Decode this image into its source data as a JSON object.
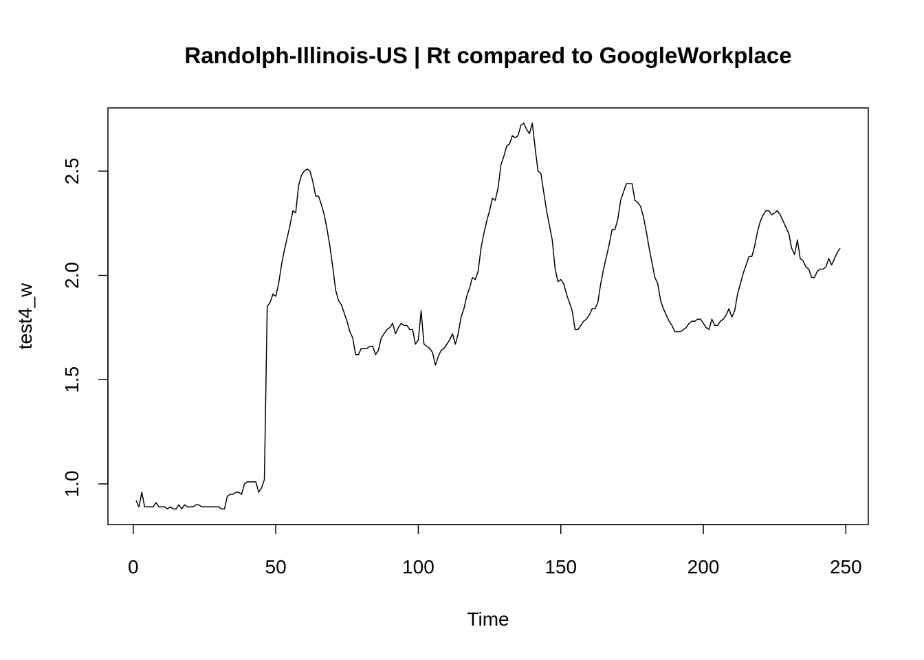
{
  "chart_data": {
    "type": "line",
    "title": "Randolph-Illinois-US | Rt compared to GoogleWorkplace",
    "x_label": "Time",
    "y_label": "test4_w",
    "xlim": [
      -8.88,
      257.88
    ],
    "ylim": [
      0.805,
      2.803
    ],
    "xticks": [
      0,
      50,
      100,
      150,
      200,
      250
    ],
    "yticks": [
      {
        "value": 1,
        "label": "1.0"
      },
      {
        "value": 1.5,
        "label": "1.5"
      },
      {
        "value": 2,
        "label": "2.0"
      },
      {
        "value": 2.5,
        "label": "2.5"
      }
    ],
    "color": "#000000",
    "x": [
      1,
      2,
      3,
      4,
      5,
      6,
      7,
      8,
      9,
      10,
      11,
      12,
      13,
      14,
      15,
      16,
      17,
      18,
      19,
      20,
      21,
      22,
      23,
      24,
      25,
      26,
      27,
      28,
      29,
      30,
      31,
      32,
      33,
      34,
      35,
      36,
      37,
      38,
      39,
      40,
      41,
      42,
      43,
      44,
      45,
      46,
      47,
      48,
      49,
      50,
      51,
      52,
      53,
      54,
      55,
      56,
      57,
      58,
      59,
      60,
      61,
      62,
      63,
      64,
      65,
      66,
      67,
      68,
      69,
      70,
      71,
      72,
      73,
      74,
      75,
      76,
      77,
      78,
      79,
      80,
      81,
      82,
      83,
      84,
      85,
      86,
      87,
      88,
      89,
      90,
      91,
      92,
      93,
      94,
      95,
      96,
      97,
      98,
      99,
      100,
      101,
      102,
      103,
      104,
      105,
      106,
      107,
      108,
      109,
      110,
      111,
      112,
      113,
      114,
      115,
      116,
      117,
      118,
      119,
      120,
      121,
      122,
      123,
      124,
      125,
      126,
      127,
      128,
      129,
      130,
      131,
      132,
      133,
      134,
      135,
      136,
      137,
      138,
      139,
      140,
      141,
      142,
      143,
      144,
      145,
      146,
      147,
      148,
      149,
      150,
      151,
      152,
      153,
      154,
      155,
      156,
      157,
      158,
      159,
      160,
      161,
      162,
      163,
      164,
      165,
      166,
      167,
      168,
      169,
      170,
      171,
      172,
      173,
      174,
      175,
      176,
      177,
      178,
      179,
      180,
      181,
      182,
      183,
      184,
      185,
      186,
      187,
      188,
      189,
      190,
      191,
      192,
      193,
      194,
      195,
      196,
      197,
      198,
      199,
      200,
      201,
      202,
      203,
      204,
      205,
      206,
      207,
      208,
      209,
      210,
      211,
      212,
      213,
      214,
      215,
      216,
      217,
      218,
      219,
      220,
      221,
      222,
      223,
      224,
      225,
      226,
      227,
      228,
      229,
      230,
      231,
      232,
      233,
      234,
      235,
      236,
      237,
      238,
      239,
      240,
      241,
      242,
      243,
      244,
      245,
      246,
      247,
      248
    ],
    "values": [
      0.92,
      0.89,
      0.96,
      0.89,
      0.89,
      0.89,
      0.89,
      0.91,
      0.89,
      0.89,
      0.89,
      0.88,
      0.89,
      0.88,
      0.88,
      0.9,
      0.88,
      0.9,
      0.89,
      0.89,
      0.89,
      0.9,
      0.9,
      0.89,
      0.89,
      0.89,
      0.89,
      0.89,
      0.89,
      0.89,
      0.88,
      0.88,
      0.94,
      0.95,
      0.95,
      0.96,
      0.96,
      0.95,
      1.0,
      1.01,
      1.01,
      1.01,
      1.01,
      0.96,
      0.98,
      1.02,
      1.85,
      1.87,
      1.91,
      1.9,
      1.96,
      2.05,
      2.12,
      2.18,
      2.24,
      2.31,
      2.3,
      2.43,
      2.48,
      2.5,
      2.51,
      2.5,
      2.45,
      2.38,
      2.38,
      2.34,
      2.29,
      2.22,
      2.14,
      2.04,
      1.93,
      1.88,
      1.86,
      1.82,
      1.78,
      1.73,
      1.7,
      1.62,
      1.62,
      1.65,
      1.65,
      1.65,
      1.66,
      1.66,
      1.62,
      1.64,
      1.7,
      1.72,
      1.74,
      1.75,
      1.77,
      1.72,
      1.75,
      1.77,
      1.76,
      1.76,
      1.74,
      1.74,
      1.67,
      1.69,
      1.83,
      1.67,
      1.66,
      1.65,
      1.63,
      1.57,
      1.61,
      1.64,
      1.65,
      1.67,
      1.69,
      1.72,
      1.67,
      1.72,
      1.8,
      1.84,
      1.9,
      1.94,
      1.99,
      1.98,
      2.02,
      2.13,
      2.2,
      2.26,
      2.31,
      2.37,
      2.36,
      2.42,
      2.53,
      2.57,
      2.62,
      2.63,
      2.67,
      2.66,
      2.67,
      2.72,
      2.73,
      2.7,
      2.68,
      2.73,
      2.61,
      2.5,
      2.49,
      2.4,
      2.31,
      2.24,
      2.17,
      2.03,
      1.97,
      1.98,
      1.96,
      1.91,
      1.87,
      1.83,
      1.74,
      1.74,
      1.76,
      1.78,
      1.79,
      1.81,
      1.84,
      1.84,
      1.87,
      1.96,
      2.03,
      2.09,
      2.15,
      2.22,
      2.22,
      2.27,
      2.36,
      2.4,
      2.44,
      2.44,
      2.44,
      2.36,
      2.35,
      2.33,
      2.28,
      2.21,
      2.13,
      2.06,
      1.99,
      1.96,
      1.88,
      1.84,
      1.81,
      1.78,
      1.76,
      1.73,
      1.73,
      1.73,
      1.74,
      1.75,
      1.77,
      1.78,
      1.78,
      1.79,
      1.79,
      1.77,
      1.75,
      1.74,
      1.79,
      1.76,
      1.76,
      1.78,
      1.79,
      1.81,
      1.84,
      1.8,
      1.83,
      1.91,
      1.96,
      2.01,
      2.05,
      2.09,
      2.09,
      2.14,
      2.21,
      2.26,
      2.29,
      2.31,
      2.31,
      2.29,
      2.3,
      2.31,
      2.29,
      2.26,
      2.23,
      2.2,
      2.13,
      2.1,
      2.17,
      2.08,
      2.07,
      2.04,
      2.03,
      1.99,
      1.99,
      2.02,
      2.03,
      2.03,
      2.04,
      2.08,
      2.05,
      2.08,
      2.11,
      2.13
    ]
  }
}
